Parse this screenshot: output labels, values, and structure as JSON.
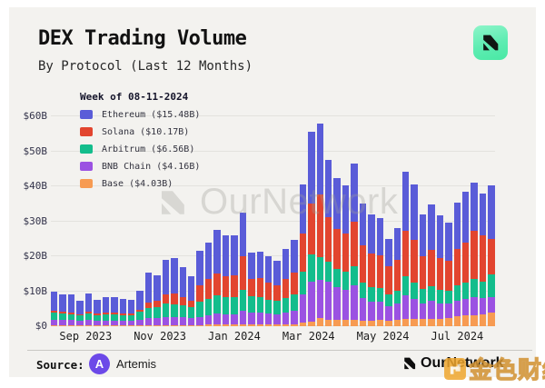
{
  "header": {
    "title": "DEX Trading Volume",
    "subtitle": "By Protocol (Last 12 Months)"
  },
  "watermark": {
    "text": "OurNetwork"
  },
  "footer": {
    "source_label": "Source:",
    "source_logo_letter": "A",
    "source_name": "Artemis",
    "brand_name": "OurNetwork",
    "cn_watermark_text": "金色财经"
  },
  "colors": {
    "background": "#f3f2ef",
    "logo_mint": "#5eecb2",
    "artemis_purple": "#6c49e8",
    "cn_gold": "#efa62e"
  },
  "chart_data": {
    "type": "bar",
    "stacked": true,
    "title": "DEX Trading Volume",
    "subtitle": "By Protocol (Last 12 Months)",
    "legend_title": "Week of 08-11-2024",
    "legend_position": "top-left",
    "grid": true,
    "xlabel": "",
    "ylabel": "",
    "ylim": [
      0,
      60
    ],
    "unit": "billion USD per week",
    "y_ticks": [
      {
        "v": 0,
        "label": "$0"
      },
      {
        "v": 10,
        "label": "$10B"
      },
      {
        "v": 20,
        "label": "$20B"
      },
      {
        "v": 30,
        "label": "$30B"
      },
      {
        "v": 40,
        "label": "$40B"
      },
      {
        "v": 50,
        "label": "$50B"
      },
      {
        "v": 60,
        "label": "$60B"
      }
    ],
    "x_ticks": [
      {
        "bar": 2,
        "label": "Sep 2023"
      },
      {
        "bar": 10.7,
        "label": "Nov 2023"
      },
      {
        "bar": 19.4,
        "label": "Jan 2024"
      },
      {
        "bar": 28.1,
        "label": "Mar 2024"
      },
      {
        "bar": 36.8,
        "label": "May 2024"
      },
      {
        "bar": 45.5,
        "label": "Jul 2024"
      }
    ],
    "weeks": 52,
    "series": [
      {
        "name": "Ethereum",
        "legend_label": "Ethereum ($15.48B)",
        "color": "#5a5cd8",
        "values": [
          5.7,
          5.1,
          5.2,
          3.7,
          5.2,
          4.0,
          4.4,
          4.4,
          4.3,
          3.9,
          5.3,
          8.5,
          7.3,
          9.8,
          10.2,
          8.5,
          7.0,
          9.8,
          10.6,
          12.4,
          11.7,
          11.3,
          12.5,
          7.5,
          7.5,
          7.5,
          7.0,
          8.5,
          9.5,
          14.0,
          20.3,
          20.2,
          16.2,
          14.5,
          13.9,
          16.8,
          12.0,
          11.0,
          10.5,
          7.8,
          9.0,
          17.0,
          15.8,
          12.0,
          13.0,
          12.0,
          10.7,
          13.2,
          14.4,
          13.6,
          11.9,
          15.48
        ]
      },
      {
        "name": "Solana",
        "legend_label": "Solana ($10.17B)",
        "color": "#e2452f",
        "values": [
          0.5,
          0.5,
          0.5,
          0.4,
          0.5,
          0.4,
          0.4,
          0.5,
          0.4,
          0.5,
          0.7,
          1.5,
          1.8,
          2.8,
          3.0,
          2.4,
          1.8,
          4.8,
          5.6,
          6.4,
          6.0,
          6.2,
          9.4,
          5.0,
          5.3,
          4.8,
          4.6,
          5.4,
          6.3,
          11.0,
          14.7,
          18.1,
          12.9,
          11.4,
          11.0,
          12.6,
          10.4,
          9.6,
          9.4,
          8.0,
          8.9,
          13.0,
          12.1,
          9.4,
          10.4,
          9.2,
          8.6,
          10.5,
          11.6,
          14.0,
          13.2,
          10.17
        ]
      },
      {
        "name": "Arbitrum",
        "legend_label": "Arbitrum ($6.56B)",
        "color": "#13bd8c",
        "values": [
          2.0,
          1.9,
          1.8,
          1.6,
          1.9,
          1.7,
          1.8,
          1.7,
          1.7,
          1.6,
          2.2,
          3.0,
          3.2,
          3.8,
          3.6,
          3.4,
          3.0,
          4.3,
          4.6,
          5.2,
          4.8,
          4.9,
          6.0,
          4.6,
          4.5,
          4.0,
          3.8,
          4.2,
          4.6,
          6.5,
          7.8,
          6.5,
          5.7,
          5.2,
          5.0,
          5.6,
          4.6,
          4.2,
          4.0,
          3.4,
          3.8,
          5.4,
          4.8,
          4.0,
          4.2,
          3.8,
          3.6,
          4.2,
          4.6,
          5.2,
          4.8,
          6.56
        ]
      },
      {
        "name": "BNB Chain",
        "legend_label": "BNB Chain ($4.16B)",
        "color": "#9b52e2",
        "values": [
          1.6,
          1.5,
          1.5,
          1.3,
          1.5,
          1.3,
          1.4,
          1.4,
          1.3,
          1.4,
          1.7,
          2.0,
          2.0,
          2.3,
          2.4,
          2.2,
          2.1,
          2.4,
          2.8,
          3.2,
          3.0,
          3.1,
          4.0,
          3.6,
          3.5,
          3.2,
          3.0,
          3.4,
          3.8,
          8.0,
          11.4,
          10.9,
          10.8,
          9.5,
          8.8,
          9.8,
          6.5,
          5.5,
          5.2,
          4.2,
          4.6,
          6.6,
          5.8,
          4.6,
          5.0,
          4.4,
          4.2,
          4.6,
          4.8,
          5.0,
          4.6,
          4.16
        ]
      },
      {
        "name": "Base",
        "legend_label": "Base ($4.03B)",
        "color": "#f79b52",
        "values": [
          0.2,
          0.2,
          0.2,
          0.2,
          0.2,
          0.2,
          0.2,
          0.2,
          0.2,
          0.2,
          0.2,
          0.3,
          0.3,
          0.3,
          0.3,
          0.3,
          0.3,
          0.3,
          0.4,
          0.4,
          0.4,
          0.4,
          0.5,
          0.4,
          0.4,
          0.4,
          0.4,
          0.5,
          0.6,
          1.0,
          1.3,
          2.3,
          1.9,
          1.8,
          1.7,
          1.8,
          1.5,
          1.6,
          1.7,
          1.6,
          1.8,
          2.2,
          2.0,
          2.0,
          2.2,
          2.2,
          2.4,
          2.8,
          3.0,
          3.2,
          3.4,
          4.03
        ]
      }
    ]
  }
}
